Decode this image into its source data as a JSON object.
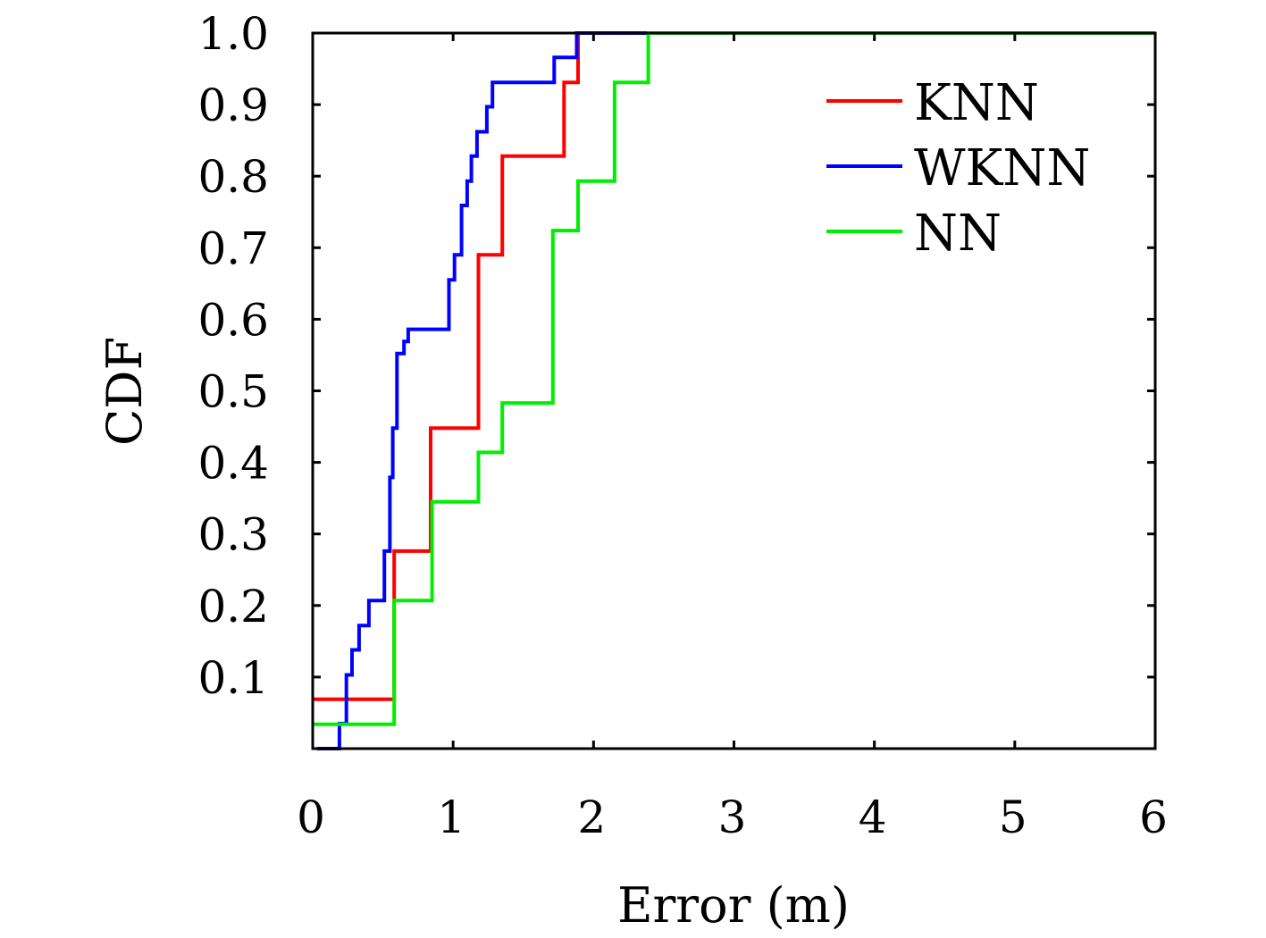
{
  "chart_data": {
    "type": "line",
    "step": true,
    "xlabel": "Error (m)",
    "ylabel": "CDF",
    "xlim": [
      0,
      6
    ],
    "ylim": [
      0,
      1.0
    ],
    "xticks": [
      0,
      1,
      2,
      3,
      4,
      5,
      6
    ],
    "xtick_labels": [
      "0",
      "1",
      "2",
      "3",
      "4",
      "5",
      "6"
    ],
    "yticks": [
      0.1,
      0.2,
      0.3,
      0.4,
      0.5,
      0.6,
      0.7,
      0.8,
      0.9,
      1.0
    ],
    "ytick_labels": [
      "0.1",
      "0.2",
      "0.3",
      "0.4",
      "0.5",
      "0.6",
      "0.7",
      "0.8",
      "0.9",
      "1.0"
    ],
    "legend_position": "top-right",
    "series": [
      {
        "name": "KNN",
        "color": "#ff0000",
        "x": [
          0,
          0.58,
          0.84,
          1.18,
          1.35,
          1.79,
          1.89,
          6
        ],
        "y": [
          0.069,
          0.276,
          0.448,
          0.69,
          0.828,
          0.931,
          1.0,
          1.0
        ]
      },
      {
        "name": "WKNN",
        "color": "#0000ff",
        "x": [
          0.03,
          0.19,
          0.24,
          0.28,
          0.33,
          0.4,
          0.51,
          0.55,
          0.57,
          0.6,
          0.65,
          0.68,
          0.97,
          1.01,
          1.06,
          1.1,
          1.13,
          1.17,
          1.24,
          1.28,
          1.34,
          1.72,
          1.88,
          6
        ],
        "y": [
          0.0,
          0.035,
          0.103,
          0.138,
          0.172,
          0.207,
          0.276,
          0.379,
          0.448,
          0.552,
          0.569,
          0.586,
          0.655,
          0.69,
          0.759,
          0.793,
          0.828,
          0.862,
          0.897,
          0.931,
          0.931,
          0.966,
          1.0,
          1.0
        ]
      },
      {
        "name": "NN",
        "color": "#00ee00",
        "x": [
          0,
          0.58,
          0.85,
          1.18,
          1.35,
          1.71,
          1.89,
          2.15,
          2.39,
          6
        ],
        "y": [
          0.034,
          0.207,
          0.345,
          0.414,
          0.483,
          0.724,
          0.793,
          0.931,
          1.0,
          1.0
        ]
      }
    ]
  }
}
